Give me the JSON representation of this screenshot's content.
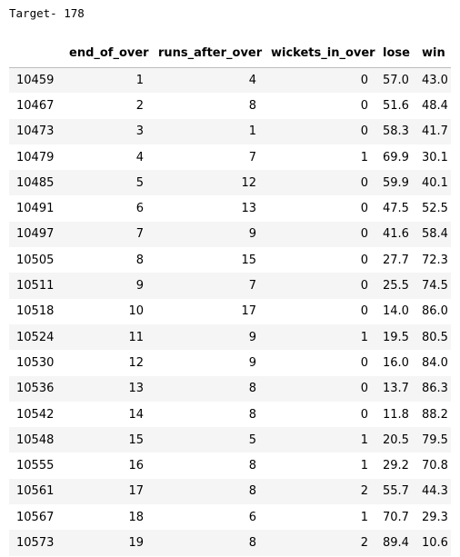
{
  "output": {
    "stdout": "Target- 178"
  },
  "table": {
    "index_header": "",
    "columns": [
      "end_of_over",
      "runs_after_over",
      "wickets_in_over",
      "lose",
      "win"
    ],
    "rows": [
      {
        "index": "10459",
        "values": [
          "1",
          "4",
          "0",
          "57.0",
          "43.0"
        ]
      },
      {
        "index": "10467",
        "values": [
          "2",
          "8",
          "0",
          "51.6",
          "48.4"
        ]
      },
      {
        "index": "10473",
        "values": [
          "3",
          "1",
          "0",
          "58.3",
          "41.7"
        ]
      },
      {
        "index": "10479",
        "values": [
          "4",
          "7",
          "1",
          "69.9",
          "30.1"
        ]
      },
      {
        "index": "10485",
        "values": [
          "5",
          "12",
          "0",
          "59.9",
          "40.1"
        ]
      },
      {
        "index": "10491",
        "values": [
          "6",
          "13",
          "0",
          "47.5",
          "52.5"
        ]
      },
      {
        "index": "10497",
        "values": [
          "7",
          "9",
          "0",
          "41.6",
          "58.4"
        ]
      },
      {
        "index": "10505",
        "values": [
          "8",
          "15",
          "0",
          "27.7",
          "72.3"
        ]
      },
      {
        "index": "10511",
        "values": [
          "9",
          "7",
          "0",
          "25.5",
          "74.5"
        ]
      },
      {
        "index": "10518",
        "values": [
          "10",
          "17",
          "0",
          "14.0",
          "86.0"
        ]
      },
      {
        "index": "10524",
        "values": [
          "11",
          "9",
          "1",
          "19.5",
          "80.5"
        ]
      },
      {
        "index": "10530",
        "values": [
          "12",
          "9",
          "0",
          "16.0",
          "84.0"
        ]
      },
      {
        "index": "10536",
        "values": [
          "13",
          "8",
          "0",
          "13.7",
          "86.3"
        ]
      },
      {
        "index": "10542",
        "values": [
          "14",
          "8",
          "0",
          "11.8",
          "88.2"
        ]
      },
      {
        "index": "10548",
        "values": [
          "15",
          "5",
          "1",
          "20.5",
          "79.5"
        ]
      },
      {
        "index": "10555",
        "values": [
          "16",
          "8",
          "1",
          "29.2",
          "70.8"
        ]
      },
      {
        "index": "10561",
        "values": [
          "17",
          "8",
          "2",
          "55.7",
          "44.3"
        ]
      },
      {
        "index": "10567",
        "values": [
          "18",
          "6",
          "1",
          "70.7",
          "29.3"
        ]
      },
      {
        "index": "10573",
        "values": [
          "19",
          "8",
          "2",
          "89.4",
          "10.6"
        ]
      }
    ]
  },
  "colors": {
    "stripe": "#f5f5f5",
    "header_border": "#bdbdbd",
    "text": "#000000"
  }
}
